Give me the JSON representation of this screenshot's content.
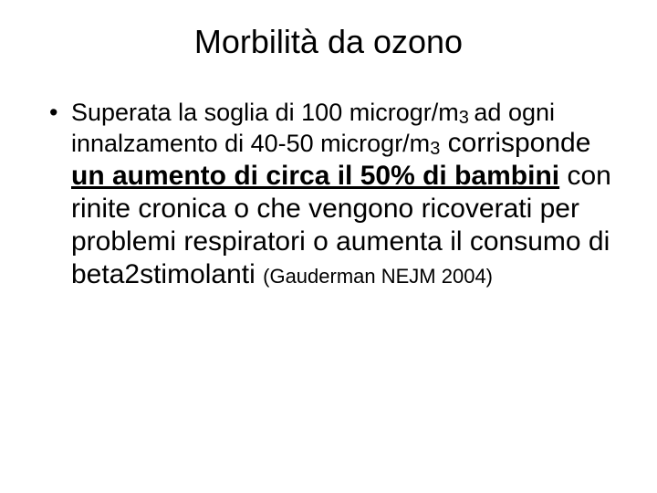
{
  "slide": {
    "title": "Morbilità da ozono",
    "bullet": {
      "part1": "Superata la soglia di 100 microgr/m",
      "sub1": "3 ",
      "part2": "ad ogni innalzamento di 40-50 microgr/m",
      "sub2": "3",
      "part3": " corrisponde ",
      "emph": "un aumento di circa il 50% di bambini",
      "part4": " con rinite cronica o che vengono ricoverati per problemi respiratori o aumenta il consumo di beta2stimolanti ",
      "ref": "(Gauderman NEJM 2004)"
    }
  },
  "style": {
    "background_color": "#ffffff",
    "text_color": "#000000",
    "title_fontsize": 36,
    "body_fontsize": 27,
    "larger_fontsize": 30,
    "subscript_fontsize": 20,
    "ref_fontsize": 22,
    "font_family": "Arial, Helvetica, sans-serif"
  }
}
